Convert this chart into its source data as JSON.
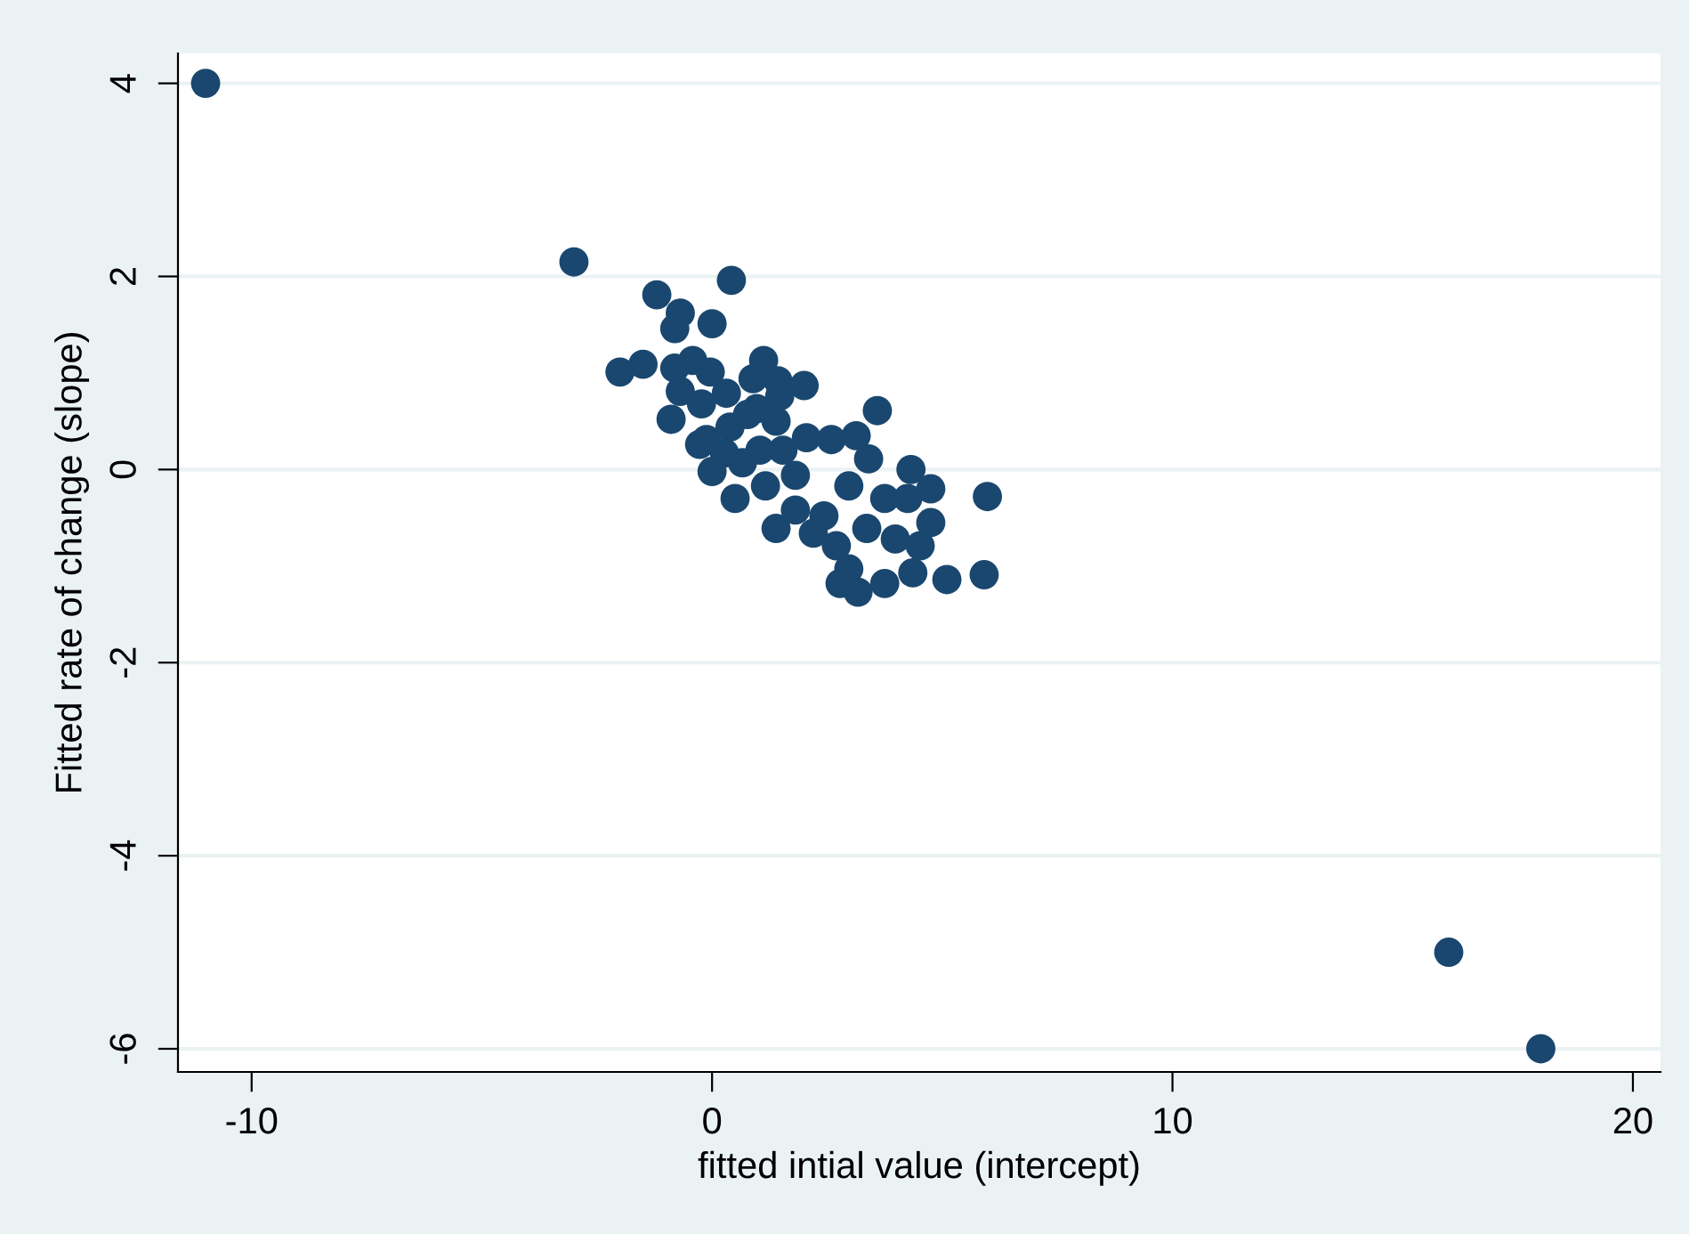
{
  "chart_data": {
    "type": "scatter",
    "xlabel": "fitted intial value (intercept)",
    "ylabel": "Fitted rate of change (slope)",
    "xlim": [
      -11.6,
      20.6
    ],
    "ylim": [
      -6.24,
      4.31
    ],
    "xticks": [
      -10,
      0,
      10,
      20
    ],
    "yticks": [
      -6,
      -4,
      -2,
      0,
      2,
      4
    ],
    "grid": "y",
    "marker": "circle",
    "series": [
      {
        "color": "#1a476f",
        "x": [
          -11,
          -3,
          16,
          18,
          0.42,
          -1.2,
          -0.69,
          -0.81,
          0,
          -2.0,
          -1.5,
          -0.81,
          -0.42,
          -0.04,
          1.12,
          0.89,
          1.43,
          2.0,
          1.47,
          0.31,
          -0.69,
          -0.89,
          3.59,
          -0.23,
          0.97,
          1.39,
          2.05,
          2.59,
          3.13,
          3.4,
          4.32,
          4.75,
          5.98,
          4.75,
          4.25,
          5.91,
          5.1,
          4.36,
          3.17,
          2.78,
          3.75,
          1.39,
          -0.12,
          0,
          0.5,
          1.16,
          1.81,
          1.04,
          0.39,
          0.77,
          1.81,
          2.43,
          2.2,
          2.7,
          2.97,
          3.36,
          3.75,
          3.98,
          4.52,
          2.97,
          1.54,
          0.66,
          0.27,
          -0.27
        ],
        "values": [
          4,
          2.15,
          -5,
          -6,
          1.96,
          1.81,
          1.62,
          1.46,
          1.51,
          1.01,
          1.09,
          1.05,
          1.13,
          1.01,
          1.13,
          0.94,
          0.92,
          0.87,
          0.76,
          0.79,
          0.81,
          0.52,
          0.61,
          0.68,
          0.63,
          0.5,
          0.33,
          0.31,
          0.35,
          0.11,
          0.0,
          -0.2,
          -0.28,
          -0.55,
          -0.3,
          -1.09,
          -1.14,
          -1.07,
          -1.27,
          -1.18,
          -1.18,
          -0.61,
          0.31,
          -0.02,
          -0.3,
          -0.17,
          -0.06,
          0.2,
          0.44,
          0.57,
          -0.42,
          -0.48,
          -0.66,
          -0.79,
          -1.03,
          -0.61,
          -0.3,
          -0.72,
          -0.79,
          -0.17,
          0.2,
          0.07,
          0.17,
          0.26
        ]
      }
    ]
  }
}
